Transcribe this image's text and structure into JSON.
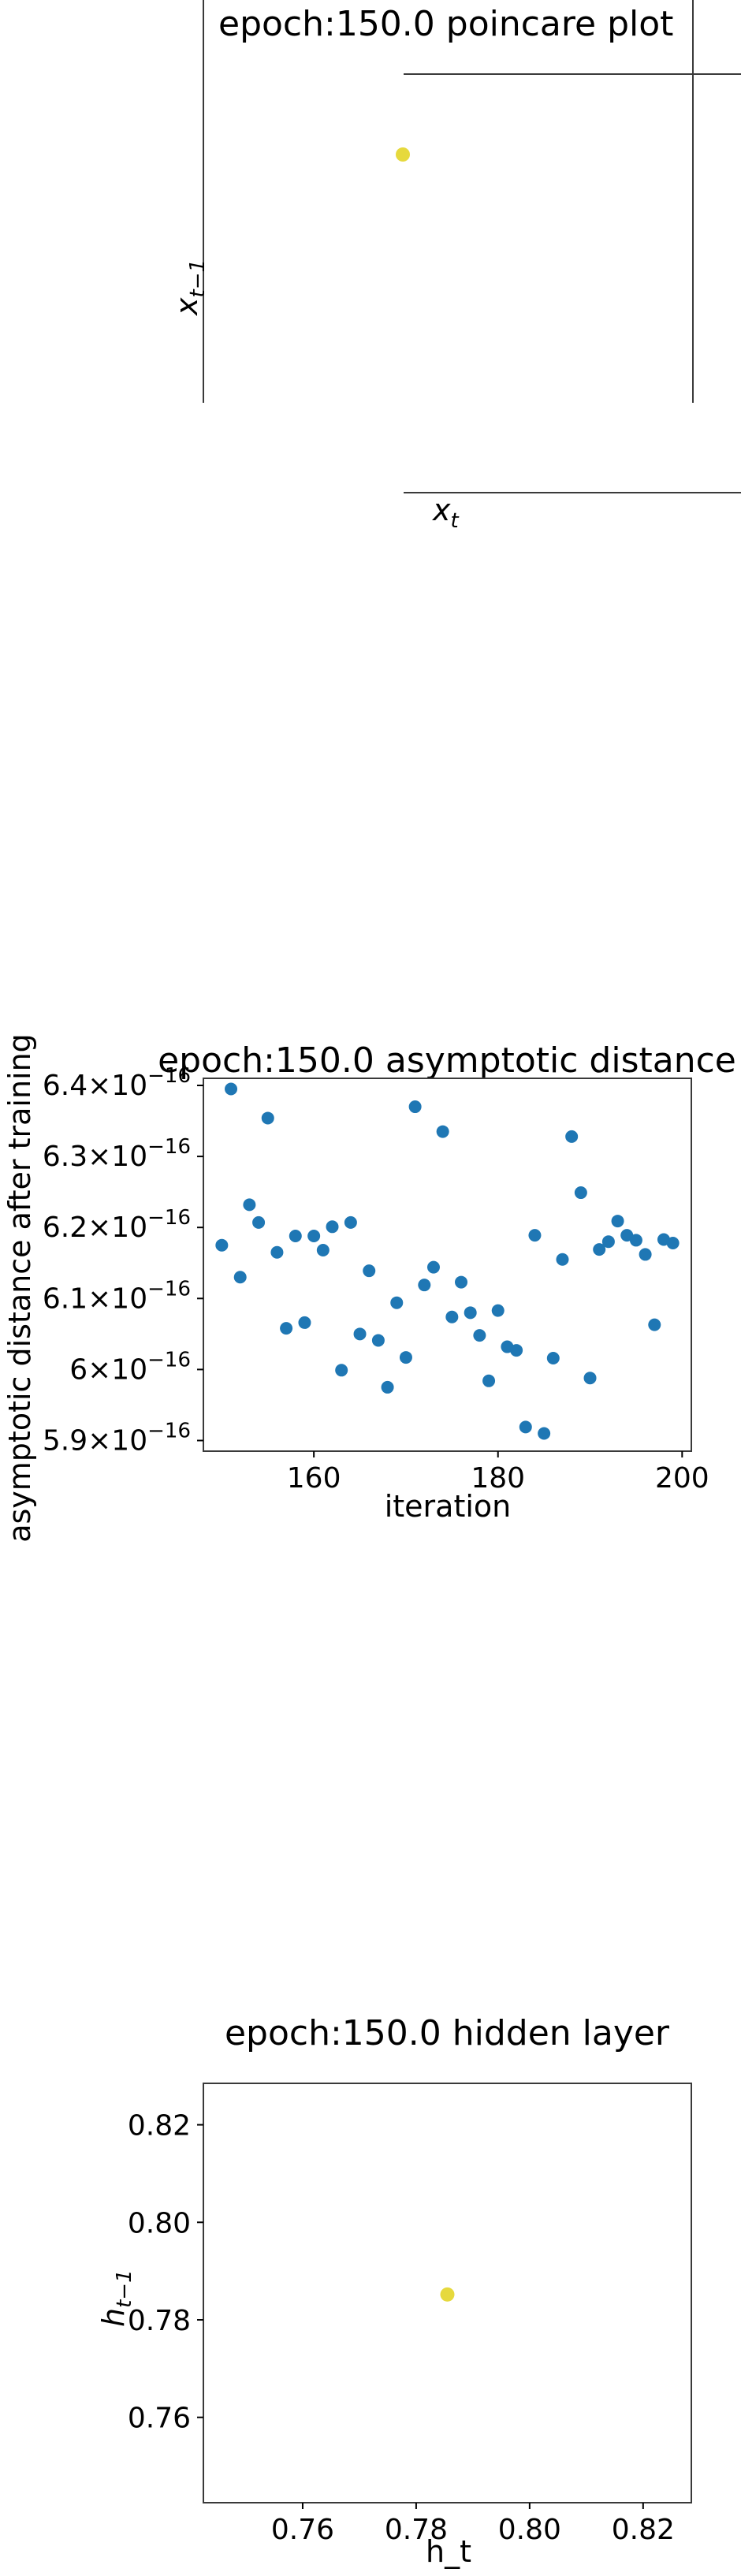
{
  "charts": [
    {
      "type": "scatter",
      "title": "epoch:150.0 poincare plot",
      "xlabel": "x_t",
      "ylabel": "x_{t−1}",
      "point_color": "#e6d93d",
      "points": [
        {
          "x": 0,
          "y": 0
        }
      ]
    },
    {
      "type": "scatter",
      "title": "epoch:150.0 asymptotic distance",
      "xlabel": "iteration",
      "ylabel": "asymptotic distance after training",
      "point_color": "#1f77b4",
      "xlim": [
        148,
        201
      ],
      "ylim": [
        5.885,
        6.41
      ],
      "x_ticks": [
        160,
        180,
        200
      ],
      "y_ticks": [
        {
          "value": 5.9,
          "mantissa": "5.9"
        },
        {
          "value": 6.0,
          "mantissa": "6"
        },
        {
          "value": 6.1,
          "mantissa": "6.1"
        },
        {
          "value": 6.2,
          "mantissa": "6.2"
        },
        {
          "value": 6.3,
          "mantissa": "6.3"
        },
        {
          "value": 6.4,
          "mantissa": "6.4"
        }
      ],
      "y_tick_times": "×10",
      "y_tick_exponent": "−16",
      "y_unit_note": "values in units of 1e-16",
      "x": [
        150,
        151,
        152,
        153,
        154,
        155,
        156,
        157,
        158,
        159,
        160,
        161,
        162,
        163,
        164,
        165,
        166,
        167,
        168,
        169,
        170,
        171,
        172,
        173,
        174,
        175,
        176,
        177,
        178,
        179,
        180,
        181,
        182,
        183,
        184,
        185,
        186,
        187,
        188,
        189,
        190,
        191,
        192,
        193,
        194,
        195,
        196,
        197,
        198,
        199
      ],
      "y": [
        6.175,
        6.395,
        6.13,
        6.232,
        6.207,
        6.354,
        6.165,
        6.058,
        6.188,
        6.066,
        6.188,
        6.168,
        6.201,
        5.999,
        6.207,
        6.05,
        6.139,
        6.041,
        5.975,
        6.094,
        6.017,
        6.37,
        6.119,
        6.144,
        6.335,
        6.074,
        6.123,
        6.08,
        6.048,
        5.984,
        6.083,
        6.032,
        6.027,
        5.919,
        6.189,
        5.91,
        6.016,
        6.155,
        6.328,
        6.249,
        5.988,
        6.169,
        6.18,
        6.209,
        6.189,
        6.182,
        6.162,
        6.063,
        6.183,
        6.178
      ]
    },
    {
      "type": "scatter",
      "title": "epoch:150.0 hidden layer",
      "xlabel": "h_t",
      "ylabel": "h_{t−1}",
      "point_color": "#e6d93d",
      "xlim": [
        0.7425,
        0.8285
      ],
      "ylim": [
        0.7425,
        0.8285
      ],
      "x_ticks": [
        {
          "value": 0.76,
          "label": "0.76"
        },
        {
          "value": 0.78,
          "label": "0.78"
        },
        {
          "value": 0.8,
          "label": "0.80"
        },
        {
          "value": 0.82,
          "label": "0.82"
        }
      ],
      "y_ticks": [
        {
          "value": 0.76,
          "label": "0.76"
        },
        {
          "value": 0.78,
          "label": "0.78"
        },
        {
          "value": 0.8,
          "label": "0.80"
        },
        {
          "value": 0.82,
          "label": "0.82"
        }
      ],
      "points": [
        {
          "x": 0.7855,
          "y": 0.7852
        }
      ]
    }
  ]
}
